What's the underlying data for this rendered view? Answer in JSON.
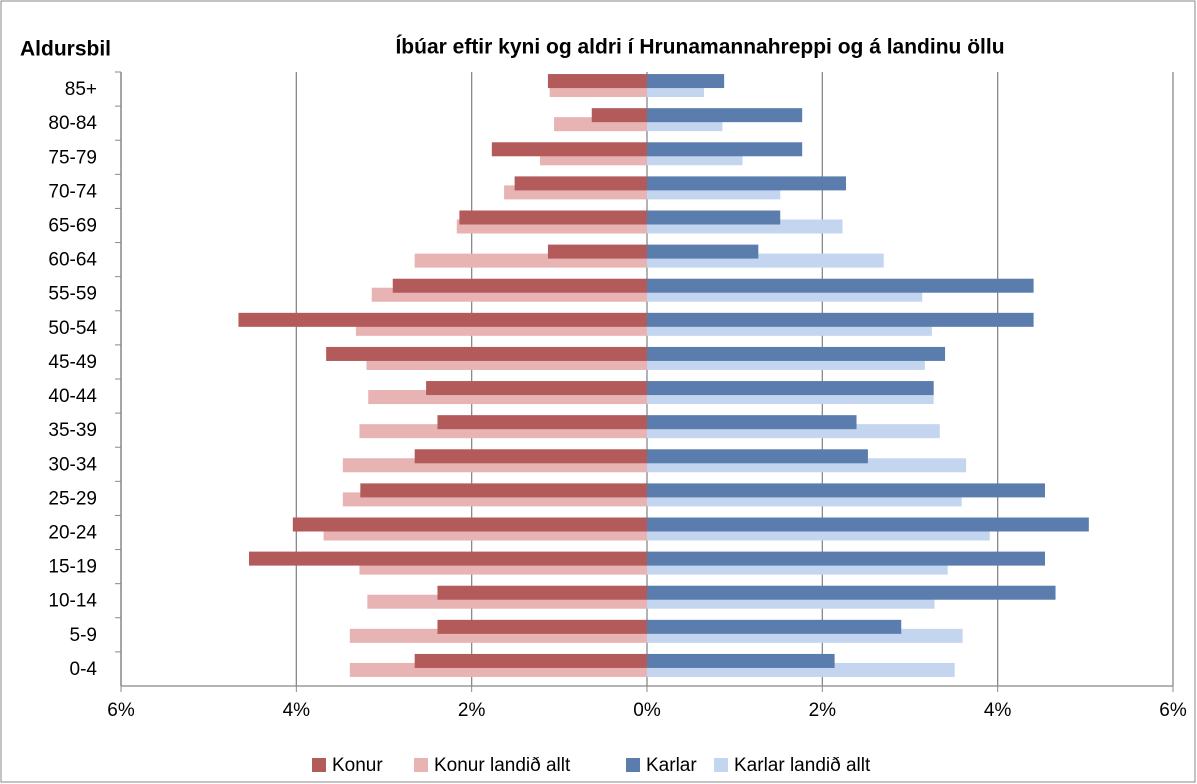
{
  "chart_data": {
    "type": "pyramid",
    "title": "Íbúar eftir kyni og aldri í Hrunamannahreppi og á landinu öllu",
    "y_label": "Aldursbil",
    "categories": [
      "85+",
      "80-84",
      "75-79",
      "70-74",
      "65-69",
      "60-64",
      "55-59",
      "50-54",
      "45-49",
      "40-44",
      "35-39",
      "30-34",
      "25-29",
      "20-24",
      "15-19",
      "10-14",
      "5-9",
      "0-4"
    ],
    "series": [
      {
        "name": "Konur",
        "color": "#b35a5a",
        "values": [
          -1.13,
          -0.63,
          -1.77,
          -1.51,
          -2.14,
          -1.13,
          -2.9,
          -4.66,
          -3.66,
          -2.52,
          -2.39,
          -2.65,
          -3.27,
          -4.04,
          -4.54,
          -2.39,
          -2.39,
          -2.65
        ]
      },
      {
        "name": "Konur landið allt",
        "color": "#e8b3b3",
        "values": [
          -1.11,
          -1.06,
          -1.22,
          -1.63,
          -2.17,
          -2.65,
          -3.14,
          -3.32,
          -3.2,
          -3.18,
          -3.28,
          -3.47,
          -3.47,
          -3.69,
          -3.28,
          -3.19,
          -3.39,
          -3.39
        ]
      },
      {
        "name": "Karlar",
        "color": "#5b7dae",
        "values": [
          0.88,
          1.77,
          1.77,
          2.27,
          1.52,
          1.27,
          4.41,
          4.41,
          3.4,
          3.27,
          2.39,
          2.52,
          4.54,
          5.04,
          4.54,
          4.66,
          2.9,
          2.14
        ]
      },
      {
        "name": "Karlar landið allt",
        "color": "#c4d6ef",
        "values": [
          0.65,
          0.86,
          1.09,
          1.52,
          2.23,
          2.7,
          3.14,
          3.25,
          3.17,
          3.27,
          3.34,
          3.64,
          3.59,
          3.91,
          3.43,
          3.28,
          3.6,
          3.51
        ]
      }
    ],
    "xlim": [
      -6,
      6
    ],
    "xticks": [
      {
        "value": -6,
        "label": "6%"
      },
      {
        "value": -4,
        "label": "4%"
      },
      {
        "value": -2,
        "label": "2%"
      },
      {
        "value": 0,
        "label": "0%"
      },
      {
        "value": 2,
        "label": "2%"
      },
      {
        "value": 4,
        "label": "4%"
      },
      {
        "value": 6,
        "label": "6%"
      }
    ],
    "grid": true,
    "legend": "bottom"
  }
}
